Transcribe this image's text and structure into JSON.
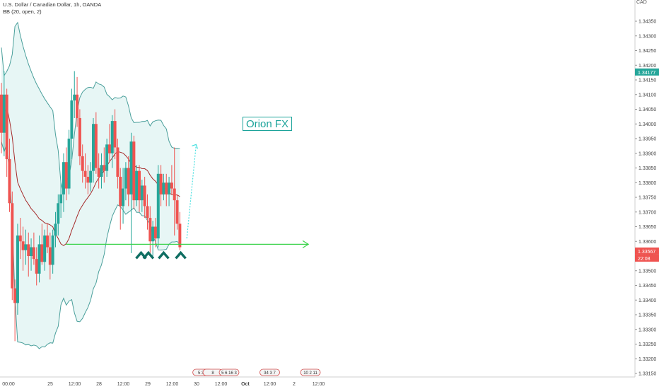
{
  "header": {
    "symbol_line": "U.S. Dollar / Canadian Dollar, 1h, OANDA",
    "indicator_line": "BB (20, open, 2)",
    "currency": "CAD"
  },
  "annotation": {
    "label": "Orion FX"
  },
  "price_badges": {
    "current": "1.34177",
    "last": "1.33567",
    "countdown": "22:08"
  },
  "colors": {
    "up": "#26a69a",
    "down": "#ef5350",
    "band": "#4a9f9b",
    "band_fill": "#d3eeec",
    "basis": "#a52a2a",
    "support": "#3ad34a",
    "arrow": "#0f6e62",
    "projection": "#48e0e0"
  },
  "chart_data": {
    "type": "candlestick",
    "y_axis": {
      "ticks": [
        "1.34350",
        "1.34300",
        "1.34250",
        "1.34200",
        "1.34150",
        "1.34100",
        "1.34050",
        "1.34000",
        "1.33950",
        "1.33900",
        "1.33850",
        "1.33800",
        "1.33750",
        "1.33700",
        "1.33650",
        "1.33600",
        "1.33550",
        "1.33500",
        "1.33450",
        "1.33400",
        "1.33350",
        "1.33300",
        "1.33250",
        "1.33200",
        "1.33150"
      ],
      "range": [
        1.3311,
        1.3441
      ]
    },
    "x_axis": {
      "ticks": [
        "00:00",
        "25",
        "12:00",
        "28",
        "12:00",
        "29",
        "12:00",
        "30",
        "12:00",
        "Oct",
        "12:00",
        "2",
        "12:00"
      ],
      "tick_hours": [
        0,
        24,
        36,
        48,
        60,
        72,
        84,
        96,
        108,
        120,
        132,
        144,
        156
      ]
    },
    "candles": [
      {
        "o": 1.341,
        "h": 1.3414,
        "l": 1.339,
        "c": 1.3397
      },
      {
        "o": 1.3397,
        "h": 1.3418,
        "l": 1.3389,
        "c": 1.341
      },
      {
        "o": 1.341,
        "h": 1.3412,
        "l": 1.3382,
        "c": 1.3388
      },
      {
        "o": 1.3388,
        "h": 1.3395,
        "l": 1.337,
        "c": 1.3373
      },
      {
        "o": 1.3373,
        "h": 1.3377,
        "l": 1.334,
        "c": 1.3344
      },
      {
        "o": 1.3344,
        "h": 1.3347,
        "l": 1.3326,
        "c": 1.3339
      },
      {
        "o": 1.3339,
        "h": 1.3366,
        "l": 1.3335,
        "c": 1.3362
      },
      {
        "o": 1.3362,
        "h": 1.3368,
        "l": 1.3354,
        "c": 1.336
      },
      {
        "o": 1.336,
        "h": 1.3365,
        "l": 1.335,
        "c": 1.3357
      },
      {
        "o": 1.3357,
        "h": 1.3364,
        "l": 1.3352,
        "c": 1.3359
      },
      {
        "o": 1.3359,
        "h": 1.3363,
        "l": 1.3348,
        "c": 1.3355
      },
      {
        "o": 1.3355,
        "h": 1.3361,
        "l": 1.335,
        "c": 1.3358
      },
      {
        "o": 1.3358,
        "h": 1.3363,
        "l": 1.3352,
        "c": 1.3354
      },
      {
        "o": 1.3354,
        "h": 1.3358,
        "l": 1.3345,
        "c": 1.3349
      },
      {
        "o": 1.3349,
        "h": 1.3362,
        "l": 1.3346,
        "c": 1.3359
      },
      {
        "o": 1.3359,
        "h": 1.3366,
        "l": 1.3352,
        "c": 1.3353
      },
      {
        "o": 1.3353,
        "h": 1.3364,
        "l": 1.335,
        "c": 1.3362
      },
      {
        "o": 1.3362,
        "h": 1.3366,
        "l": 1.3356,
        "c": 1.3358
      },
      {
        "o": 1.3358,
        "h": 1.3363,
        "l": 1.3347,
        "c": 1.3352
      },
      {
        "o": 1.3352,
        "h": 1.3364,
        "l": 1.3349,
        "c": 1.3362
      },
      {
        "o": 1.3362,
        "h": 1.337,
        "l": 1.3358,
        "c": 1.3366
      },
      {
        "o": 1.3366,
        "h": 1.3376,
        "l": 1.3362,
        "c": 1.3373
      },
      {
        "o": 1.3373,
        "h": 1.338,
        "l": 1.3368,
        "c": 1.3376
      },
      {
        "o": 1.3376,
        "h": 1.339,
        "l": 1.337,
        "c": 1.3387
      },
      {
        "o": 1.3387,
        "h": 1.3392,
        "l": 1.3374,
        "c": 1.3378
      },
      {
        "o": 1.3378,
        "h": 1.3398,
        "l": 1.3376,
        "c": 1.3395
      },
      {
        "o": 1.3395,
        "h": 1.3412,
        "l": 1.3388,
        "c": 1.3408
      },
      {
        "o": 1.3408,
        "h": 1.3418,
        "l": 1.3402,
        "c": 1.341
      },
      {
        "o": 1.341,
        "h": 1.3416,
        "l": 1.3399,
        "c": 1.3402
      },
      {
        "o": 1.3402,
        "h": 1.3405,
        "l": 1.3386,
        "c": 1.3389
      },
      {
        "o": 1.3389,
        "h": 1.3393,
        "l": 1.338,
        "c": 1.3384
      },
      {
        "o": 1.3384,
        "h": 1.339,
        "l": 1.3378,
        "c": 1.3382
      },
      {
        "o": 1.3382,
        "h": 1.3386,
        "l": 1.3376,
        "c": 1.338
      },
      {
        "o": 1.338,
        "h": 1.3387,
        "l": 1.3377,
        "c": 1.3384
      },
      {
        "o": 1.3384,
        "h": 1.3402,
        "l": 1.338,
        "c": 1.34
      },
      {
        "o": 1.34,
        "h": 1.3404,
        "l": 1.3383,
        "c": 1.3385
      },
      {
        "o": 1.3385,
        "h": 1.339,
        "l": 1.3378,
        "c": 1.3382
      },
      {
        "o": 1.3382,
        "h": 1.339,
        "l": 1.3378,
        "c": 1.3386
      },
      {
        "o": 1.3386,
        "h": 1.3392,
        "l": 1.338,
        "c": 1.3384
      },
      {
        "o": 1.3384,
        "h": 1.3395,
        "l": 1.3382,
        "c": 1.3393
      },
      {
        "o": 1.3393,
        "h": 1.34,
        "l": 1.3387,
        "c": 1.339
      },
      {
        "o": 1.339,
        "h": 1.3403,
        "l": 1.3385,
        "c": 1.3401
      },
      {
        "o": 1.3401,
        "h": 1.3405,
        "l": 1.3388,
        "c": 1.3392
      },
      {
        "o": 1.3392,
        "h": 1.3395,
        "l": 1.3378,
        "c": 1.3382
      },
      {
        "o": 1.3382,
        "h": 1.3385,
        "l": 1.3364,
        "c": 1.3372
      },
      {
        "o": 1.3372,
        "h": 1.3385,
        "l": 1.3366,
        "c": 1.3378
      },
      {
        "o": 1.3378,
        "h": 1.3387,
        "l": 1.3374,
        "c": 1.3385
      },
      {
        "o": 1.3385,
        "h": 1.3389,
        "l": 1.3372,
        "c": 1.3376
      },
      {
        "o": 1.3376,
        "h": 1.3397,
        "l": 1.3356,
        "c": 1.3394
      },
      {
        "o": 1.3394,
        "h": 1.3396,
        "l": 1.3371,
        "c": 1.3374
      },
      {
        "o": 1.3374,
        "h": 1.3386,
        "l": 1.3372,
        "c": 1.3384
      },
      {
        "o": 1.3384,
        "h": 1.3386,
        "l": 1.337,
        "c": 1.3374
      },
      {
        "o": 1.3374,
        "h": 1.3381,
        "l": 1.337,
        "c": 1.3379
      },
      {
        "o": 1.3379,
        "h": 1.3382,
        "l": 1.3368,
        "c": 1.3372
      },
      {
        "o": 1.3372,
        "h": 1.3376,
        "l": 1.3364,
        "c": 1.3368
      },
      {
        "o": 1.3368,
        "h": 1.3372,
        "l": 1.3356,
        "c": 1.336
      },
      {
        "o": 1.336,
        "h": 1.3367,
        "l": 1.3355,
        "c": 1.3365
      },
      {
        "o": 1.3365,
        "h": 1.3368,
        "l": 1.3358,
        "c": 1.3361
      },
      {
        "o": 1.3361,
        "h": 1.3386,
        "l": 1.3358,
        "c": 1.3383
      },
      {
        "o": 1.3383,
        "h": 1.3386,
        "l": 1.3372,
        "c": 1.3376
      },
      {
        "o": 1.3376,
        "h": 1.3383,
        "l": 1.3374,
        "c": 1.338
      },
      {
        "o": 1.338,
        "h": 1.3383,
        "l": 1.3372,
        "c": 1.3376
      },
      {
        "o": 1.3376,
        "h": 1.3382,
        "l": 1.3372,
        "c": 1.338
      },
      {
        "o": 1.338,
        "h": 1.3386,
        "l": 1.3376,
        "c": 1.3378
      },
      {
        "o": 1.3378,
        "h": 1.3392,
        "l": 1.3362,
        "c": 1.3374
      },
      {
        "o": 1.3374,
        "h": 1.3376,
        "l": 1.3364,
        "c": 1.3366
      },
      {
        "o": 1.3366,
        "h": 1.337,
        "l": 1.3357,
        "c": 1.3358
      }
    ],
    "candle_spacing_hours": 1.33,
    "support_level": 1.3359,
    "support_hours": [
      31.7,
      151
    ],
    "support_touches_hours": [
      68.7,
      72.3,
      79.8,
      88.2
    ],
    "projection": {
      "from": [
        91.2,
        1.3361
      ],
      "to": [
        95.8,
        1.3393
      ]
    },
    "event_markers": [
      {
        "label": "5 3 3",
        "hour": 99
      },
      {
        "label": "8",
        "hour": 104
      },
      {
        "label": "5 6 16 3",
        "hour": 112
      },
      {
        "label": "34 3 7",
        "hour": 132
      },
      {
        "label": "10 2 11",
        "hour": 152
      }
    ],
    "grid": false,
    "legend": "top-left"
  }
}
